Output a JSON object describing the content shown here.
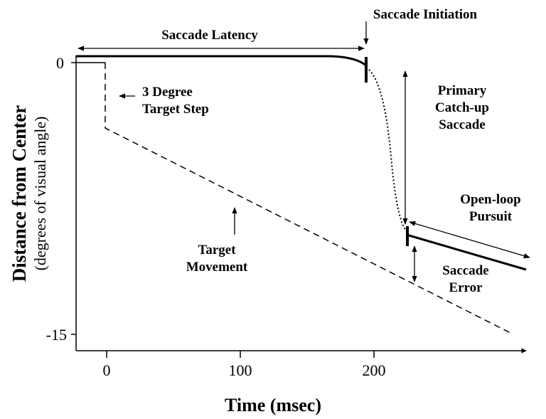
{
  "axes": {
    "x_label": "Time (msec)",
    "y_label": "Distance from Center",
    "y_sublabel": "(degrees of visual angle)",
    "x_ticks": [
      "0",
      "100",
      "200"
    ],
    "y_ticks": [
      "0",
      "-15"
    ]
  },
  "annotations": {
    "latency": [
      "Saccade Latency"
    ],
    "initiation": [
      "Saccade Initiation"
    ],
    "target_step": [
      "3 Degree",
      "Target Step"
    ],
    "catch_up": [
      "Primary",
      "Catch-up",
      "Saccade"
    ],
    "pursuit": [
      "Open-loop",
      "Pursuit"
    ],
    "error": [
      "Saccade",
      "Error"
    ],
    "movement": [
      "Target",
      "Movement"
    ]
  }
}
